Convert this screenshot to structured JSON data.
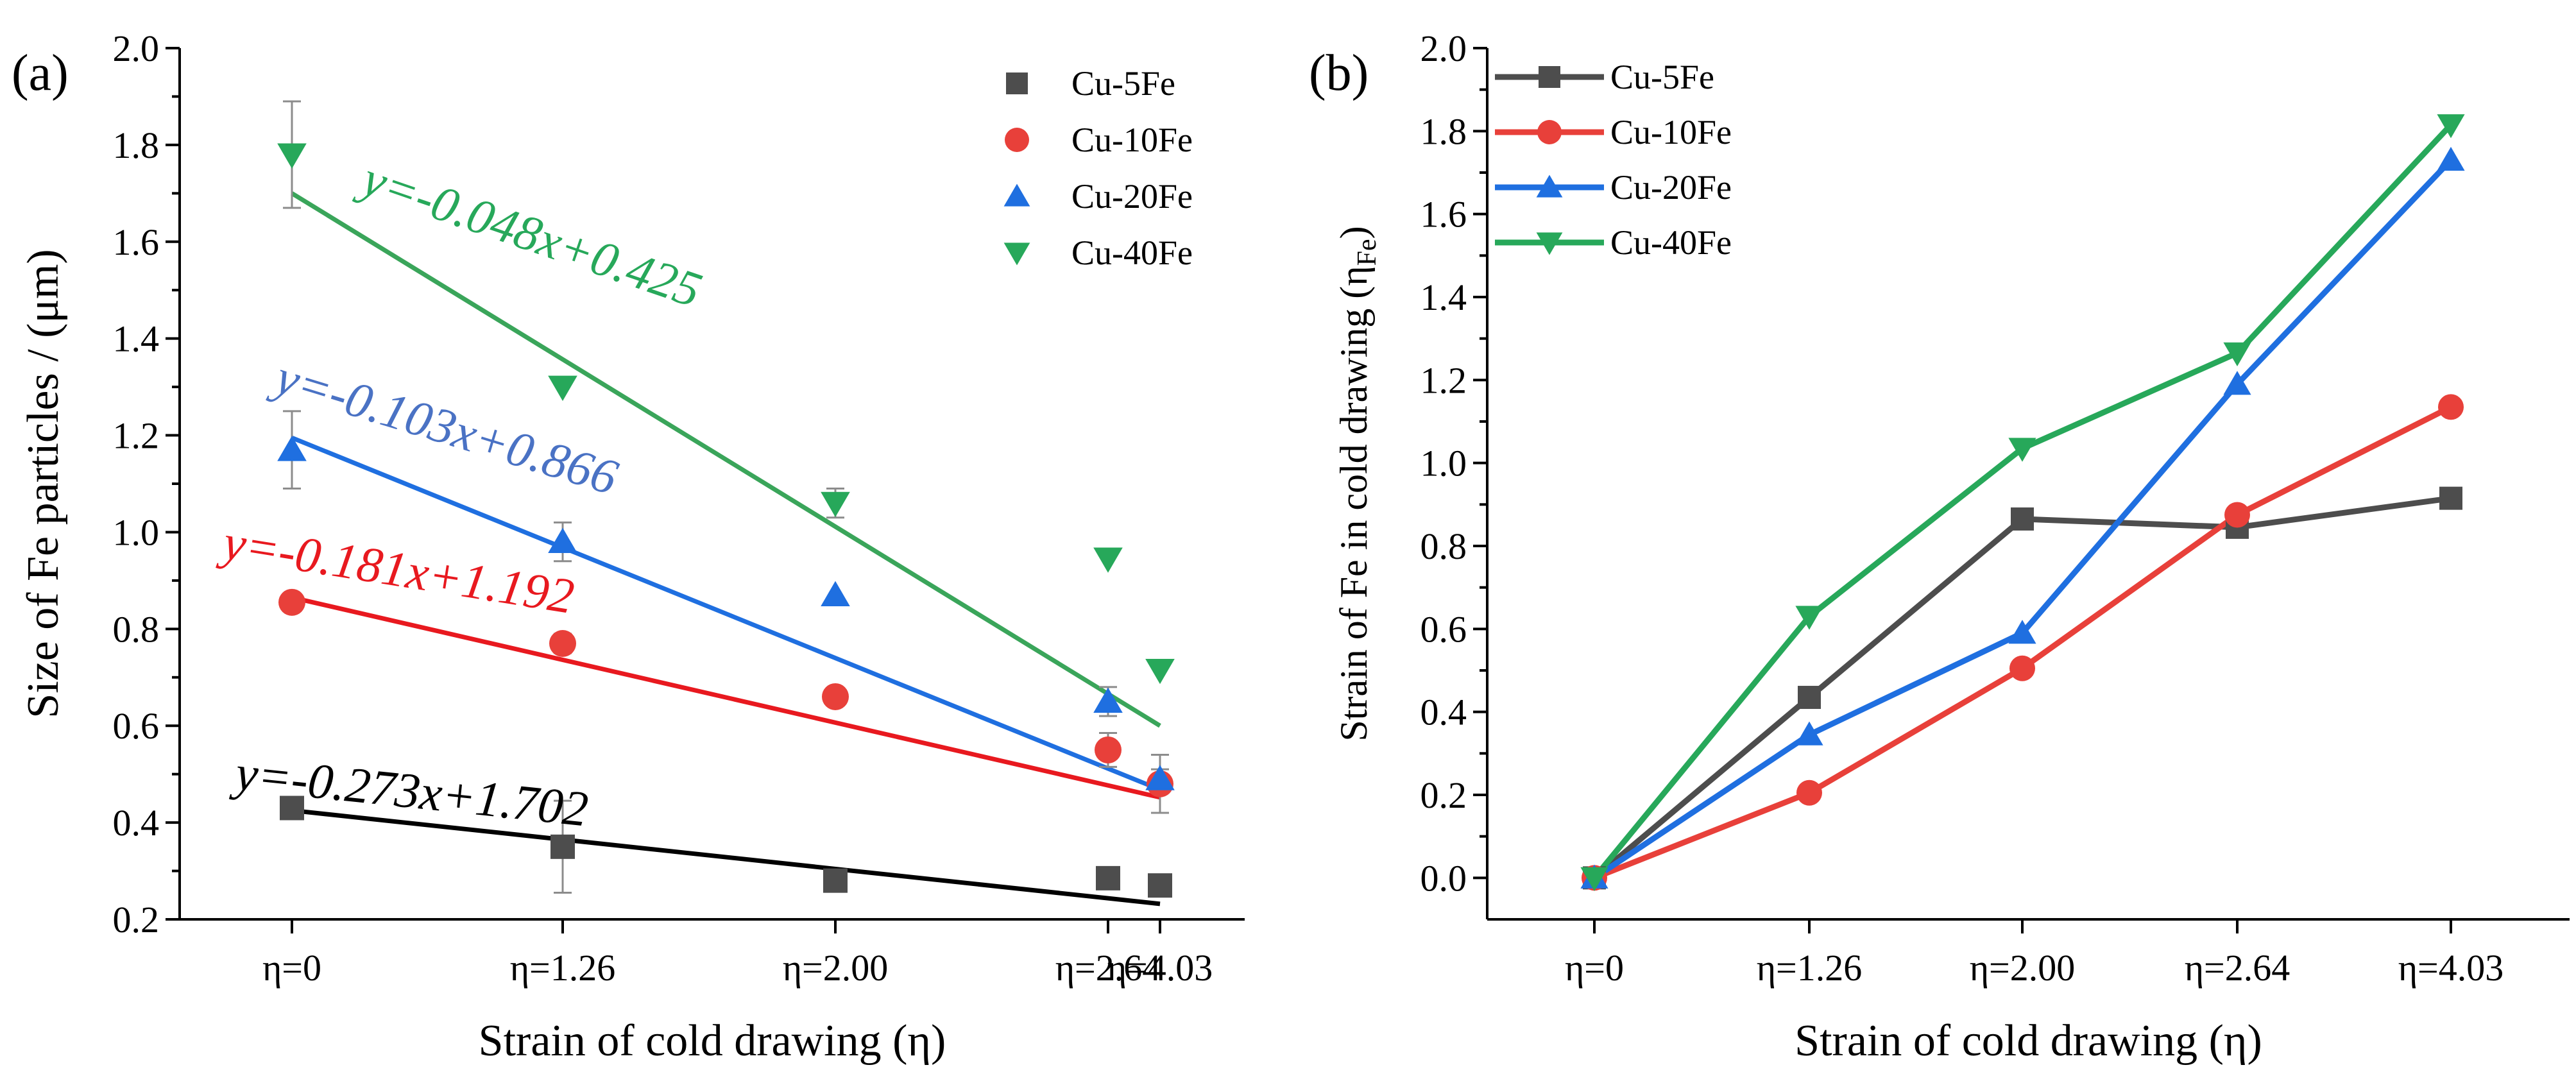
{
  "chart_data": [
    {
      "type": "scatter",
      "panel_label": "(a)",
      "categories": [
        "η=0",
        "η=1.26",
        "η=2.00",
        "η=2.64",
        "η=4.03"
      ],
      "xlabel": "Strain of cold drawing (η)",
      "ylabel": "Size of Fe particles / (μm)",
      "ylim": [
        0.2,
        2.0
      ],
      "yticks": [
        "0.2",
        "0.4",
        "0.6",
        "0.8",
        "1.0",
        "1.2",
        "1.4",
        "1.6",
        "1.8",
        "2.0"
      ],
      "grid": false,
      "legend_position": "top-right",
      "series": [
        {
          "name": "Cu-5Fe",
          "color": "#4d4d4d",
          "line_color": "#000000",
          "marker": "square",
          "values": [
            0.43,
            0.35,
            0.28,
            0.285,
            0.27
          ],
          "errors": [
            0.01,
            0.095,
            0.02,
            0.01,
            0.01
          ],
          "fit": [
            0.425,
            0.232
          ],
          "equation": "y=-0.273x+1.702"
        },
        {
          "name": "Cu-10Fe",
          "color": "#e8403a",
          "line_color": "#e8191f",
          "marker": "circle",
          "values": [
            0.855,
            0.77,
            0.66,
            0.55,
            0.48
          ],
          "errors": [
            0.01,
            0.02,
            0.01,
            0.035,
            0.06
          ],
          "fit": [
            0.865,
            0.452
          ],
          "equation": "y=-0.181x+1.192"
        },
        {
          "name": "Cu-20Fe",
          "color": "#1f6fe0",
          "line_color": "#1f6fe0",
          "marker": "triangle-up",
          "values": [
            1.17,
            0.98,
            0.87,
            0.65,
            0.49
          ],
          "errors": [
            0.08,
            0.04,
            0.015,
            0.03,
            0.02
          ],
          "fit": [
            1.195,
            0.468
          ],
          "equation": "y=-0.103x+0.866"
        },
        {
          "name": "Cu-40Fe",
          "color": "#27a85a",
          "line_color": "#3aa55a",
          "marker": "triangle-down",
          "values": [
            1.78,
            1.3,
            1.06,
            0.945,
            0.715
          ],
          "errors": [
            0.11,
            0.015,
            0.03,
            0.01,
            0.01
          ],
          "fit": [
            1.7,
            0.6
          ],
          "equation": "y=-0.048x+0.425"
        }
      ]
    },
    {
      "type": "line",
      "panel_label": "(b)",
      "categories": [
        "η=0",
        "η=1.26",
        "η=2.00",
        "η=2.64",
        "η=4.03"
      ],
      "xlabel": "Strain of cold drawing (η)",
      "ylabel": "Strain of Fe in cold drawing (η",
      "ylabel_sub": "Fe",
      "ylabel_end": ")",
      "ylim": [
        -0.1,
        2.0
      ],
      "yticks": [
        "0.0",
        "0.2",
        "0.4",
        "0.6",
        "0.8",
        "1.0",
        "1.2",
        "1.4",
        "1.6",
        "1.8",
        "2.0"
      ],
      "grid": false,
      "legend_position": "top-left",
      "series": [
        {
          "name": "Cu-5Fe",
          "color": "#4d4d4d",
          "marker": "square",
          "values": [
            0.0,
            0.435,
            0.865,
            0.845,
            0.915
          ]
        },
        {
          "name": "Cu-10Fe",
          "color": "#e8403a",
          "marker": "circle",
          "values": [
            0.0,
            0.205,
            0.505,
            0.875,
            1.135
          ]
        },
        {
          "name": "Cu-20Fe",
          "color": "#1f6fe0",
          "marker": "triangle-up",
          "values": [
            0.0,
            0.345,
            0.59,
            1.19,
            1.73
          ]
        },
        {
          "name": "Cu-40Fe",
          "color": "#27a85a",
          "marker": "triangle-down",
          "values": [
            0.0,
            0.63,
            1.035,
            1.265,
            1.815
          ]
        }
      ]
    }
  ]
}
